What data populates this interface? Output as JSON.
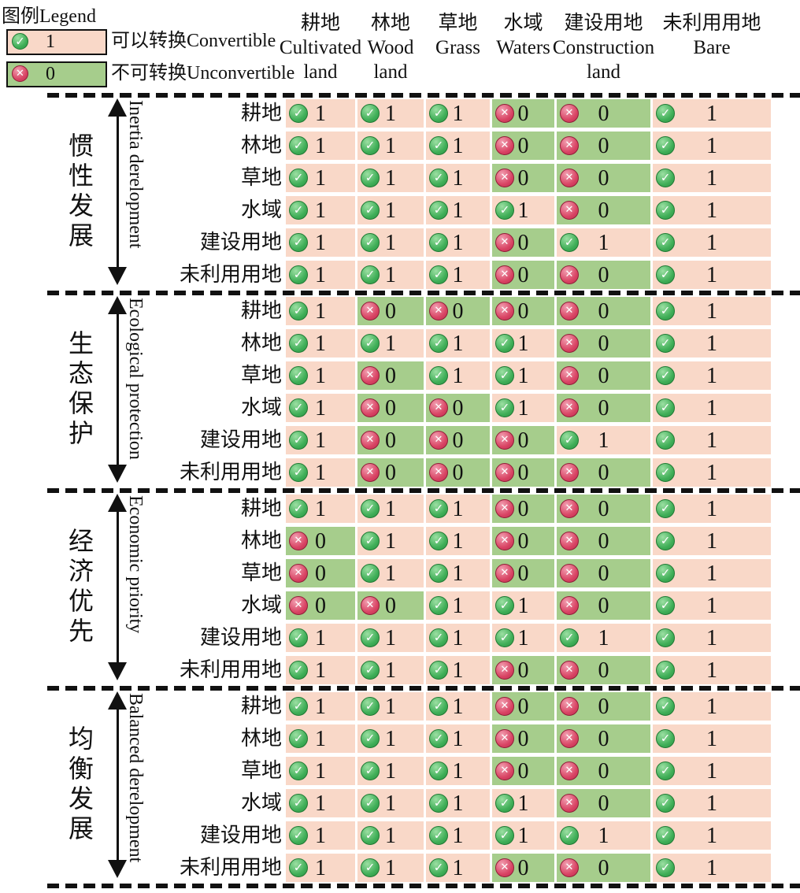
{
  "legend": {
    "title": "图例Legend",
    "items": [
      {
        "value": "1",
        "icon": "check-icon",
        "type": "convertible",
        "label": "可以转换Convertible"
      },
      {
        "value": "0",
        "icon": "cross-icon",
        "type": "unconvertible",
        "label": "不可转换Unconvertible"
      }
    ]
  },
  "columns": [
    {
      "zh": "耕地",
      "en1": "Cultivated",
      "en2": "land"
    },
    {
      "zh": "林地",
      "en1": "Wood",
      "en2": "land"
    },
    {
      "zh": "草地",
      "en1": "Grass",
      "en2": ""
    },
    {
      "zh": "水域",
      "en1": "Waters",
      "en2": ""
    },
    {
      "zh": "建设用地",
      "en1": "Construction",
      "en2": "land"
    },
    {
      "zh": "未利用用地",
      "en1": "Bare",
      "en2": ""
    }
  ],
  "row_labels": [
    "耕地",
    "林地",
    "草地",
    "水域",
    "建设用地",
    "未利用用地"
  ],
  "colors": {
    "convertible_bg": "#f9d8c8",
    "unconvertible_bg": "#a6cd8c",
    "check_green": "#3fae57",
    "cross_red": "#d84363",
    "line_black": "#111111"
  },
  "chart_data": {
    "type": "table",
    "title": "Land-use conversion rule matrices under four scenarios",
    "legend": {
      "1": "可以转换Convertible",
      "0": "不可转换Unconvertible"
    },
    "columns": [
      "耕地 Cultivated land",
      "林地 Wood land",
      "草地 Grass",
      "水域 Waters",
      "建设用地 Construction land",
      "未利用用地 Bare"
    ],
    "rows": [
      "耕地",
      "林地",
      "草地",
      "水域",
      "建设用地",
      "未利用用地"
    ],
    "scenarios": [
      {
        "label_zh": "惯性发展",
        "label_en": "Inertia derelopment",
        "matrix": [
          [
            1,
            1,
            1,
            0,
            0,
            1
          ],
          [
            1,
            1,
            1,
            0,
            0,
            1
          ],
          [
            1,
            1,
            1,
            0,
            0,
            1
          ],
          [
            1,
            1,
            1,
            1,
            0,
            1
          ],
          [
            1,
            1,
            1,
            0,
            1,
            1
          ],
          [
            1,
            1,
            1,
            0,
            0,
            1
          ]
        ]
      },
      {
        "label_zh": "生态保护",
        "label_en": "Ecological protection",
        "matrix": [
          [
            1,
            0,
            0,
            0,
            0,
            1
          ],
          [
            1,
            1,
            1,
            1,
            0,
            1
          ],
          [
            1,
            0,
            1,
            1,
            0,
            1
          ],
          [
            1,
            0,
            0,
            1,
            0,
            1
          ],
          [
            1,
            0,
            0,
            0,
            1,
            1
          ],
          [
            1,
            0,
            0,
            0,
            0,
            1
          ]
        ]
      },
      {
        "label_zh": "经济优先",
        "label_en": "Economic priority",
        "matrix": [
          [
            1,
            1,
            1,
            0,
            0,
            1
          ],
          [
            0,
            1,
            1,
            0,
            0,
            1
          ],
          [
            0,
            1,
            1,
            0,
            0,
            1
          ],
          [
            0,
            0,
            1,
            1,
            0,
            1
          ],
          [
            1,
            1,
            1,
            1,
            1,
            1
          ],
          [
            1,
            1,
            1,
            0,
            0,
            1
          ]
        ]
      },
      {
        "label_zh": "均衡发展",
        "label_en": "Balanced derelopment",
        "matrix": [
          [
            1,
            1,
            1,
            0,
            0,
            1
          ],
          [
            1,
            1,
            1,
            0,
            0,
            1
          ],
          [
            1,
            1,
            1,
            0,
            0,
            1
          ],
          [
            1,
            1,
            1,
            1,
            0,
            1
          ],
          [
            1,
            1,
            1,
            1,
            1,
            1
          ],
          [
            1,
            1,
            1,
            0,
            0,
            1
          ]
        ]
      }
    ]
  }
}
